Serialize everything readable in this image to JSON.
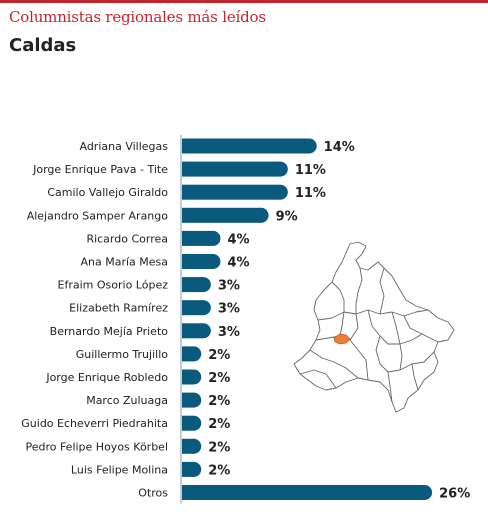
{
  "header": {
    "kicker": "Columnistas regionales más leídos",
    "title": "Caldas"
  },
  "map": {
    "icon": "colombia-map-icon",
    "highlight_color": "#ef7d3a",
    "outline_color": "#666666"
  },
  "colors": {
    "bar": "#0a5a7d",
    "accent": "#c4262e",
    "axis": "#8c9aa1"
  },
  "chart_data": {
    "type": "bar",
    "orientation": "horizontal",
    "title": "Caldas",
    "value_suffix": "%",
    "categories": [
      "Adriana Villegas",
      "Jorge Enrique Pava - Tite",
      "Camilo Vallejo Giraldo",
      "Alejandro Samper Arango",
      "Ricardo Correa",
      "Ana María Mesa",
      "Efraim Osorio López",
      "Elizabeth Ramírez",
      "Bernardo Mejía Prieto",
      "Guillermo Trujillo",
      "Jorge Enrique Robledo",
      "Marco Zuluaga",
      "Guido Echeverri Piedrahita",
      "Pedro Felipe Hoyos Körbel",
      "Luis Felipe Molina",
      "Otros"
    ],
    "values": [
      14,
      11,
      11,
      9,
      4,
      4,
      3,
      3,
      3,
      2,
      2,
      2,
      2,
      2,
      2,
      26
    ],
    "data_labels": [
      "14%",
      "11%",
      "11%",
      "9%",
      "4%",
      "4%",
      "3%",
      "3%",
      "3%",
      "2%",
      "2%",
      "2%",
      "2%",
      "2%",
      "2%",
      "26%"
    ],
    "xlim": [
      0,
      26
    ]
  }
}
